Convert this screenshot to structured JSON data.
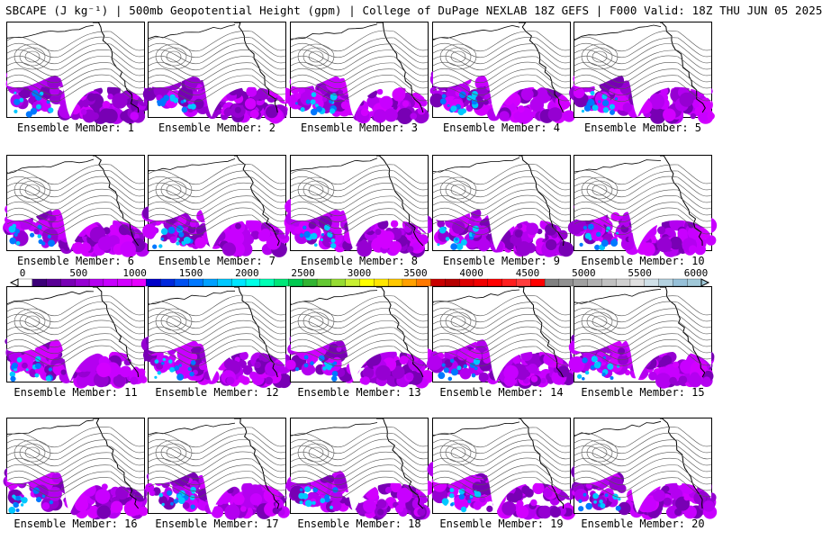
{
  "title": "SBCAPE (J kg⁻¹) | 500mb Geopotential Height (gpm) | College of DuPage NEXLAB 18Z GEFS | F000 Valid: 18Z THU JUN 05 2025",
  "panels": [
    {
      "label": "Ensemble Member: 1"
    },
    {
      "label": "Ensemble Member: 2"
    },
    {
      "label": "Ensemble Member: 3"
    },
    {
      "label": "Ensemble Member: 4"
    },
    {
      "label": "Ensemble Member: 5"
    },
    {
      "label": "Ensemble Member: 6"
    },
    {
      "label": "Ensemble Member: 7"
    },
    {
      "label": "Ensemble Member: 8"
    },
    {
      "label": "Ensemble Member: 9"
    },
    {
      "label": "Ensemble Member: 10"
    },
    {
      "label": "Ensemble Member: 11"
    },
    {
      "label": "Ensemble Member: 12"
    },
    {
      "label": "Ensemble Member: 13"
    },
    {
      "label": "Ensemble Member: 14"
    },
    {
      "label": "Ensemble Member: 15"
    },
    {
      "label": "Ensemble Member: 16"
    },
    {
      "label": "Ensemble Member: 17"
    },
    {
      "label": "Ensemble Member: 18"
    },
    {
      "label": "Ensemble Member: 19"
    },
    {
      "label": "Ensemble Member: 20"
    }
  ],
  "colorbar": {
    "ticks": [
      "0",
      "500",
      "1000",
      "1500",
      "2000",
      "2500",
      "3000",
      "3500",
      "4000",
      "4500",
      "5000",
      "5500",
      "6000"
    ],
    "colors": [
      "#ffffff",
      "#3c0078",
      "#5a0096",
      "#7800b4",
      "#9600d2",
      "#b400f0",
      "#c800ff",
      "#d200ff",
      "#e600ff",
      "#0000c8",
      "#0028dc",
      "#0050f0",
      "#0078ff",
      "#00a0ff",
      "#00c8ff",
      "#00e6ff",
      "#00ffe6",
      "#00ffb4",
      "#00e678",
      "#00c850",
      "#32b432",
      "#64c832",
      "#96dc32",
      "#c8f032",
      "#ffff00",
      "#ffe600",
      "#ffc800",
      "#ffa000",
      "#ff7800",
      "#c80000",
      "#b40000",
      "#dc0000",
      "#f00000",
      "#ff0000",
      "#ff1e1e",
      "#ff3c3c",
      "#ff0000",
      "#808080",
      "#909090",
      "#a0a0a0",
      "#b0b0b0",
      "#c0c0c0",
      "#d0d0d0",
      "#e0e0e0",
      "#cfe0e8",
      "#b4d2e0",
      "#96c0d8",
      "#a0c8d8"
    ]
  }
}
